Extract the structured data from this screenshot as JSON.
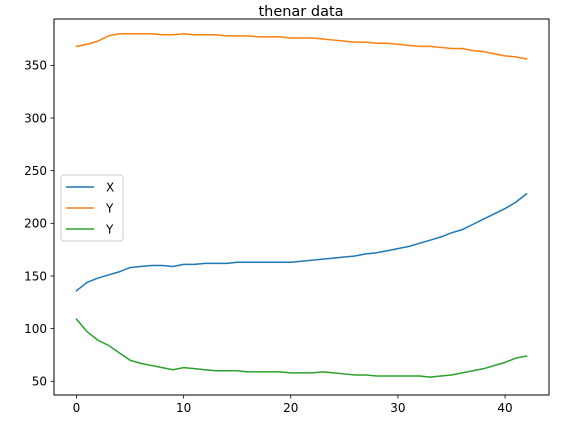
{
  "chart_data": {
    "type": "line",
    "title": "thenar data",
    "xlabel": "",
    "ylabel": "",
    "xlim": [
      -2.1,
      44.1
    ],
    "ylim": [
      37,
      394
    ],
    "xticks": [
      0,
      10,
      20,
      30,
      40
    ],
    "yticks": [
      50,
      100,
      150,
      200,
      250,
      300,
      350
    ],
    "grid": false,
    "legend": "center-left",
    "x": [
      0,
      1,
      2,
      3,
      4,
      5,
      6,
      7,
      8,
      9,
      10,
      11,
      12,
      13,
      14,
      15,
      16,
      17,
      18,
      19,
      20,
      21,
      22,
      23,
      24,
      25,
      26,
      27,
      28,
      29,
      30,
      31,
      32,
      33,
      34,
      35,
      36,
      37,
      38,
      39,
      40,
      41,
      42
    ],
    "series": [
      {
        "name": "X",
        "color": "#1f77b4",
        "values": [
          136,
          144,
          148,
          151,
          154,
          158,
          159,
          160,
          160,
          159,
          161,
          161,
          162,
          162,
          162,
          163,
          163,
          163,
          163,
          163,
          163,
          164,
          165,
          166,
          167,
          168,
          169,
          171,
          172,
          174,
          176,
          178,
          181,
          184,
          187,
          191,
          194,
          199,
          204,
          209,
          214,
          220,
          228
        ]
      },
      {
        "name": "Y",
        "color": "#ff7f0e",
        "values": [
          368,
          370,
          373,
          378,
          380,
          380,
          380,
          380,
          379,
          379,
          380,
          379,
          379,
          379,
          378,
          378,
          378,
          377,
          377,
          377,
          376,
          376,
          376,
          375,
          374,
          373,
          372,
          372,
          371,
          371,
          370,
          369,
          368,
          368,
          367,
          366,
          366,
          364,
          363,
          361,
          359,
          358,
          356
        ]
      },
      {
        "name": "Y",
        "color": "#2ca02c",
        "values": [
          109,
          97,
          89,
          84,
          77,
          70,
          67,
          65,
          63,
          61,
          63,
          62,
          61,
          60,
          60,
          60,
          59,
          59,
          59,
          59,
          58,
          58,
          58,
          59,
          58,
          57,
          56,
          56,
          55,
          55,
          55,
          55,
          55,
          54,
          55,
          56,
          58,
          60,
          62,
          65,
          68,
          72,
          74
        ]
      }
    ]
  }
}
